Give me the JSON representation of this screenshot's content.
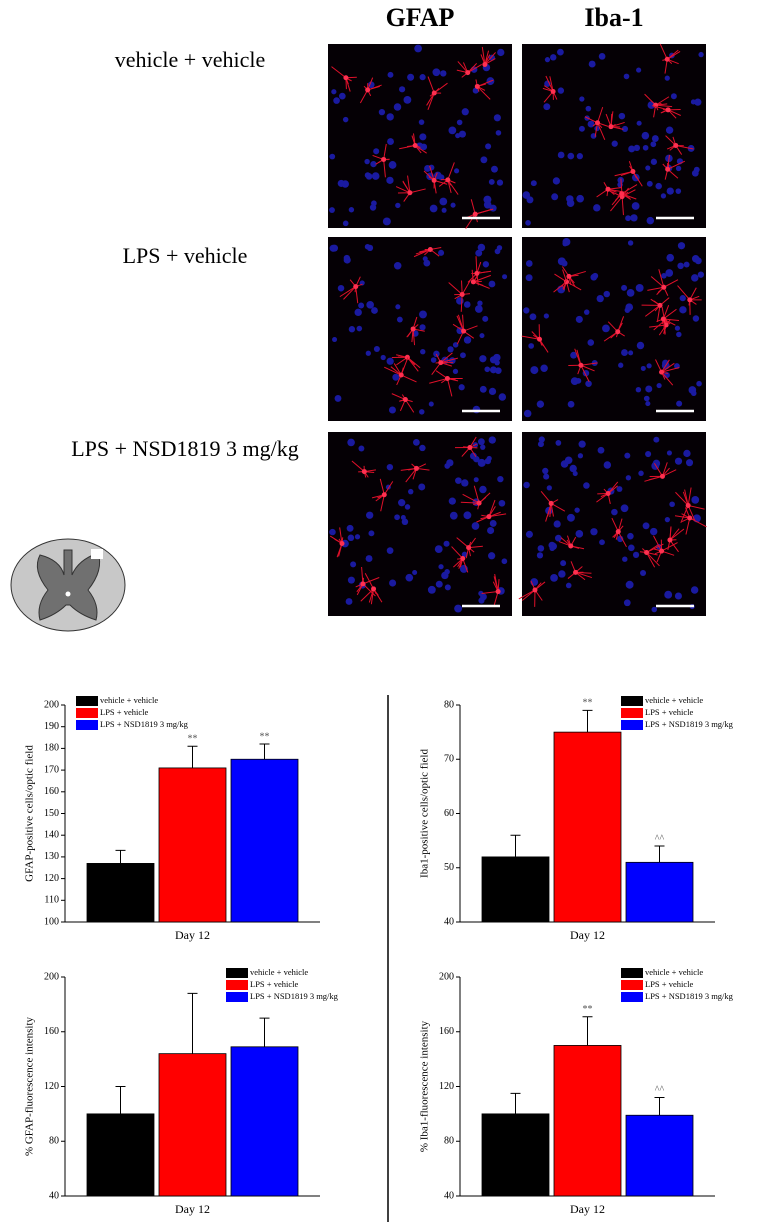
{
  "header": {
    "columns": [
      "GFAP",
      "Iba-1"
    ],
    "rows": [
      "vehicle + vehicle",
      "LPS + vehicle",
      "LPS + NSD1819 3 mg/kg"
    ]
  },
  "chart_data": [
    {
      "type": "bar",
      "y_label": "GFAP-positive cells/optic field",
      "categories": [
        "Day 12"
      ],
      "ylim": [
        100,
        200
      ],
      "yticks": [
        100,
        110,
        120,
        130,
        140,
        150,
        160,
        170,
        180,
        190,
        200
      ],
      "legend": "upper left",
      "series": [
        {
          "name": "vehicle + vehicle",
          "color": "#000000",
          "values": [
            127
          ],
          "errors": [
            6
          ]
        },
        {
          "name": "LPS + vehicle",
          "color": "#ff0000",
          "values": [
            171
          ],
          "errors": [
            10
          ],
          "significance": "**"
        },
        {
          "name": "LPS + NSD1819 3 mg/kg",
          "color": "#0000ff",
          "values": [
            175
          ],
          "errors": [
            7
          ],
          "significance": "**"
        }
      ]
    },
    {
      "type": "bar",
      "y_label": "Iba1-positive cells/optic field",
      "categories": [
        "Day 12"
      ],
      "ylim": [
        40,
        80
      ],
      "yticks": [
        40,
        50,
        60,
        70,
        80
      ],
      "legend": "upper right",
      "series": [
        {
          "name": "vehicle + vehicle",
          "color": "#000000",
          "values": [
            52
          ],
          "errors": [
            4
          ]
        },
        {
          "name": "LPS + vehicle",
          "color": "#ff0000",
          "values": [
            75
          ],
          "errors": [
            4
          ],
          "significance": "**"
        },
        {
          "name": "LPS + NSD1819 3 mg/kg",
          "color": "#0000ff",
          "values": [
            51
          ],
          "errors": [
            3
          ],
          "significance": "^^"
        }
      ]
    },
    {
      "type": "bar",
      "y_label": "% GFAP-fluorescence intensity",
      "categories": [
        "Day 12"
      ],
      "ylim": [
        40,
        200
      ],
      "yticks": [
        40,
        80,
        120,
        160,
        200
      ],
      "legend": "upper right",
      "series": [
        {
          "name": "vehicle + vehicle",
          "color": "#000000",
          "values": [
            100
          ],
          "errors": [
            20
          ]
        },
        {
          "name": "LPS + vehicle",
          "color": "#ff0000",
          "values": [
            144
          ],
          "errors": [
            44
          ]
        },
        {
          "name": "LPS + NSD1819 3 mg/kg",
          "color": "#0000ff",
          "values": [
            149
          ],
          "errors": [
            21
          ]
        }
      ]
    },
    {
      "type": "bar",
      "y_label": "% Iba1-fluorescence intensity",
      "categories": [
        "Day 12"
      ],
      "ylim": [
        40,
        200
      ],
      "yticks": [
        40,
        80,
        120,
        160,
        200
      ],
      "legend": "upper right",
      "series": [
        {
          "name": "vehicle + vehicle",
          "color": "#000000",
          "values": [
            100
          ],
          "errors": [
            15
          ]
        },
        {
          "name": "LPS + vehicle",
          "color": "#ff0000",
          "values": [
            150
          ],
          "errors": [
            21
          ],
          "significance": "**"
        },
        {
          "name": "LPS + NSD1819 3 mg/kg",
          "color": "#0000ff",
          "values": [
            99
          ],
          "errors": [
            13
          ],
          "significance": "^^"
        }
      ]
    }
  ]
}
